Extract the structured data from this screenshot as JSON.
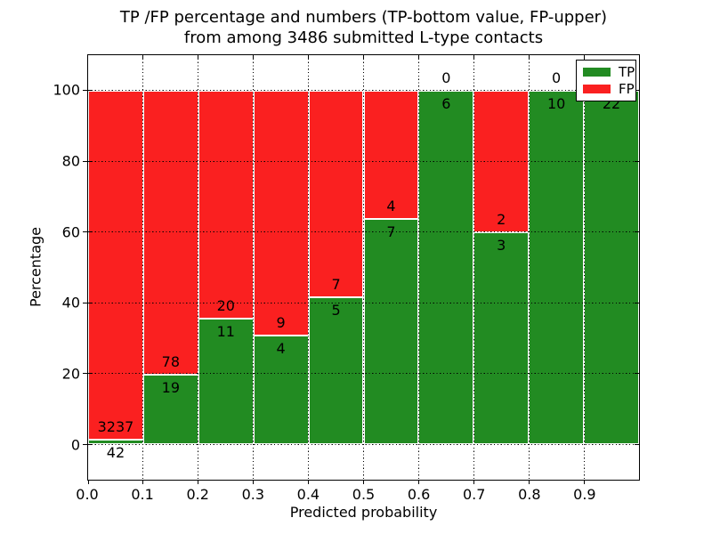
{
  "title": {
    "line1": "TP /FP percentage and numbers (TP-bottom value, FP-upper)",
    "line2": "from among 3486 submitted L-type contacts"
  },
  "chart_data": {
    "type": "bar",
    "subtype": "stacked-100-percent-with-count-labels",
    "title": "TP /FP percentage and numbers (TP-bottom value, FP-upper) from among 3486 submitted L-type contacts",
    "xlabel": "Predicted probability",
    "ylabel": "Percentage",
    "xlim": [
      0.0,
      1.0
    ],
    "ylim": [
      -10,
      110
    ],
    "bin_width": 0.1,
    "grid": {
      "style": "dotted",
      "color": "#000000"
    },
    "x_tick_labels": [
      "0.0",
      "0.1",
      "0.2",
      "0.3",
      "0.4",
      "0.5",
      "0.6",
      "0.7",
      "0.8",
      "0.9"
    ],
    "y_tick_values": [
      0,
      20,
      40,
      60,
      80,
      100
    ],
    "categories": [
      "0.0-0.1",
      "0.1-0.2",
      "0.2-0.3",
      "0.3-0.4",
      "0.4-0.5",
      "0.5-0.6",
      "0.6-0.7",
      "0.7-0.8",
      "0.8-0.9",
      "0.9-1.0"
    ],
    "series": [
      {
        "name": "TP",
        "color": "#228b22",
        "counts": [
          42,
          19,
          11,
          4,
          5,
          7,
          6,
          3,
          10,
          22
        ]
      },
      {
        "name": "FP",
        "color": "#fa2020",
        "counts": [
          3237,
          78,
          20,
          9,
          7,
          4,
          0,
          2,
          0,
          0
        ]
      }
    ],
    "tp_percent": [
      1.3,
      19.6,
      35.5,
      30.8,
      41.7,
      63.6,
      100.0,
      60.0,
      100.0,
      100.0
    ],
    "total_contacts": 3486,
    "bar_edge_color": "#ffffff",
    "legend": {
      "position": "upper-right",
      "entries": [
        {
          "label": "TP",
          "color": "#228b22"
        },
        {
          "label": "FP",
          "color": "#fa2020"
        }
      ]
    }
  }
}
